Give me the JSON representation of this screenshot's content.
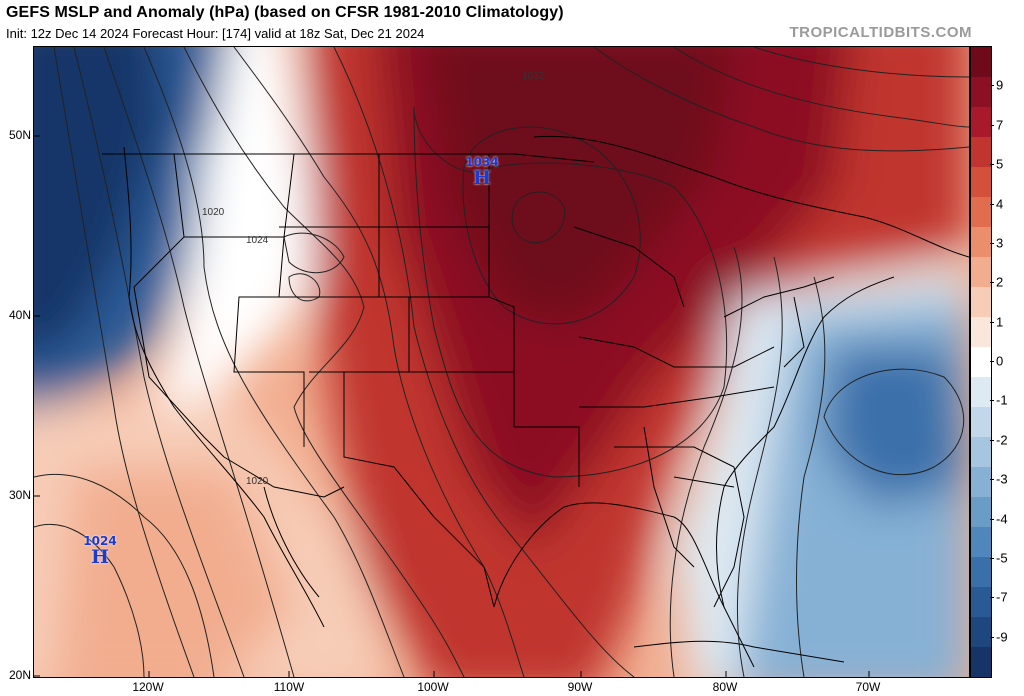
{
  "header": {
    "title": "GEFS MSLP and Anomaly (hPa) (based on CFSR 1981-2010 Climatology)",
    "subtitle": "Init: 12z Dec 14 2024   Forecast Hour: [174]   valid at 18z Sat, Dec 21 2024",
    "brand": "TROPICALTIDBITS.COM"
  },
  "axes": {
    "lat_labels": [
      "50N",
      "40N",
      "30N",
      "20N"
    ],
    "lon_labels": [
      "120W",
      "110W",
      "100W",
      "90W",
      "80W",
      "70W"
    ]
  },
  "colorbar": {
    "labels": [
      "9",
      "7",
      "5",
      "4",
      "3",
      "2",
      "1",
      "0",
      "-1",
      "-2",
      "-3",
      "-4",
      "-5",
      "-7",
      "-9"
    ],
    "colors": [
      "#6e0a1a",
      "#8c1024",
      "#a8192c",
      "#c0352f",
      "#d3503b",
      "#e06d4e",
      "#eb8e6c",
      "#f2ad8f",
      "#f7cdb8",
      "#fbe6dc",
      "#ffffff",
      "#deeaf3",
      "#c2d8ea",
      "#a5c5e0",
      "#86b1d5",
      "#6a9cc8",
      "#4f86bb",
      "#3a70aa",
      "#2a5a96",
      "#1e467f",
      "#173468"
    ]
  },
  "pressure_centers": [
    {
      "value": "1034",
      "symbol": "H"
    },
    {
      "value": "1024",
      "symbol": "H"
    }
  ],
  "contour_labels": [
    "1032",
    "1020",
    "1024",
    "1020"
  ]
}
